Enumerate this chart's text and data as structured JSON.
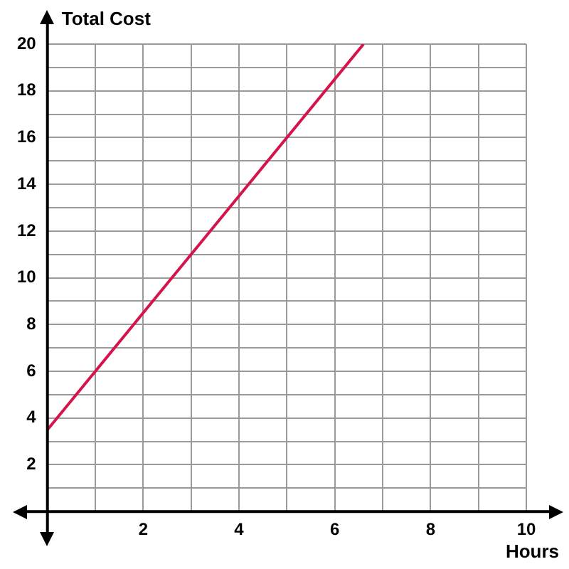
{
  "chart_data": {
    "type": "line",
    "xlabel": "Hours",
    "ylabel": "Total Cost",
    "x": [
      0,
      6.6
    ],
    "values": [
      3.5,
      20
    ],
    "color": "#d4144a",
    "xlim": [
      0,
      10
    ],
    "ylim": [
      0,
      20
    ],
    "xticks": [
      {
        "value": 0,
        "label": null
      },
      {
        "value": 1,
        "label": null
      },
      2,
      {
        "value": 3,
        "label": null
      },
      4,
      {
        "value": 5,
        "label": null
      },
      6,
      {
        "value": 7,
        "label": null
      },
      8,
      {
        "value": 9,
        "label": null
      },
      10
    ],
    "yticks": [
      {
        "value": 0,
        "label": null
      },
      {
        "value": 1,
        "label": null
      },
      2,
      {
        "value": 3,
        "label": null
      },
      4,
      {
        "value": 5,
        "label": null
      },
      6,
      {
        "value": 7,
        "label": null
      },
      8,
      {
        "value": 9,
        "label": null
      },
      10,
      {
        "value": 11,
        "label": null
      },
      12,
      {
        "value": 13,
        "label": null
      },
      14,
      {
        "value": 15,
        "label": null
      },
      16,
      {
        "value": 17,
        "label": null
      },
      18,
      {
        "value": 19,
        "label": null
      },
      20
    ],
    "grid": true,
    "marker": "none",
    "line_style": "solid",
    "legend": false
  }
}
